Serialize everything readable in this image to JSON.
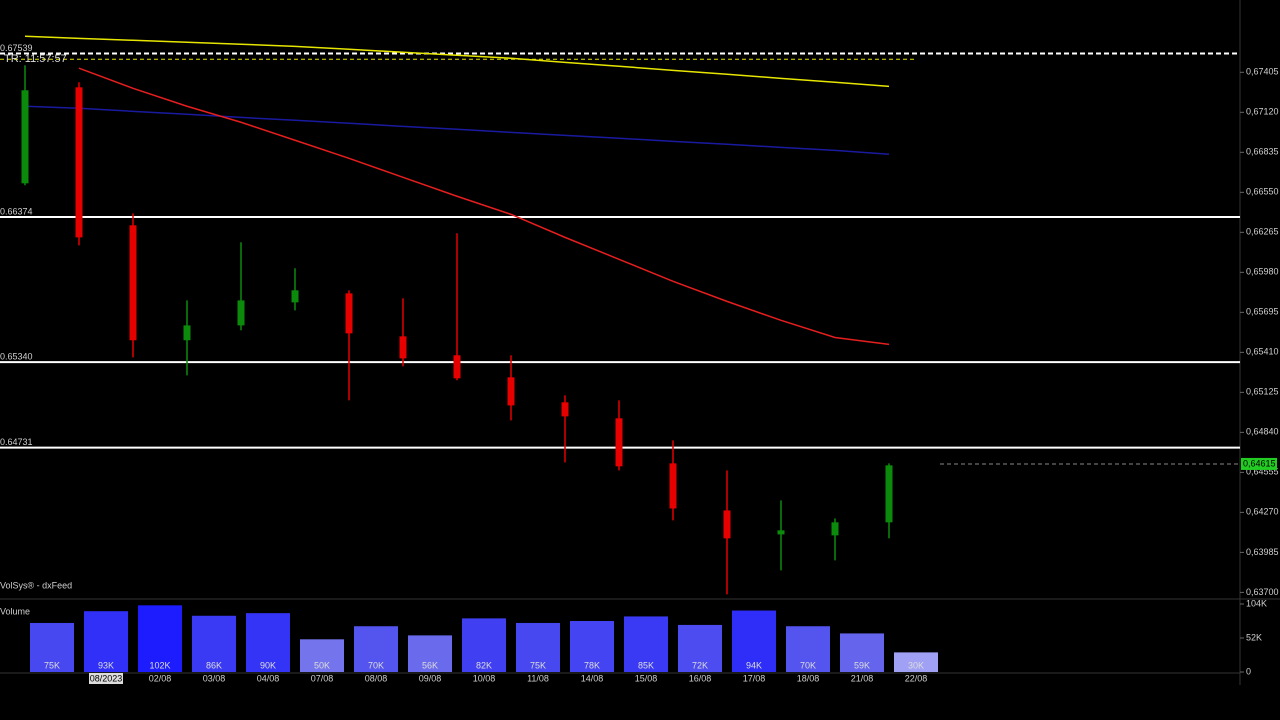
{
  "chart_data": [
    {
      "type": "candlestick",
      "watermark": "VolSys® - dxFeed",
      "ylim": [
        0.6366,
        0.6792
      ],
      "yticks": [
        {
          "value": 0.67405,
          "label": "0,67405"
        },
        {
          "value": 0.6712,
          "label": "0,67120"
        },
        {
          "value": 0.66835,
          "label": "0,66835"
        },
        {
          "value": 0.6655,
          "label": "0,66550"
        },
        {
          "value": 0.66265,
          "label": "0,66265"
        },
        {
          "value": 0.6598,
          "label": "0,65980"
        },
        {
          "value": 0.65695,
          "label": "0,65695"
        },
        {
          "value": 0.6541,
          "label": "0,65410"
        },
        {
          "value": 0.65125,
          "label": "0,65125"
        },
        {
          "value": 0.6484,
          "label": "0,64840"
        },
        {
          "value": 0.64555,
          "label": "0,64555"
        },
        {
          "value": 0.6427,
          "label": "0,64270"
        },
        {
          "value": 0.63985,
          "label": "0,63985"
        },
        {
          "value": 0.637,
          "label": "0,63700"
        }
      ],
      "open": [
        0.66614,
        0.67298,
        0.66315,
        0.65496,
        0.65602,
        0.65766,
        0.6583,
        0.65524,
        0.65389,
        0.65232,
        0.65054,
        0.6494,
        0.64619,
        0.64284,
        0.64113,
        0.64106,
        0.64199
      ],
      "high": [
        0.67455,
        0.67334,
        0.664,
        0.6578,
        0.66194,
        0.66009,
        0.65852,
        0.65795,
        0.66258,
        0.65389,
        0.65104,
        0.65068,
        0.64783,
        0.64569,
        0.64355,
        0.64227,
        0.64619
      ],
      "low": [
        0.666,
        0.66172,
        0.65374,
        0.65246,
        0.65567,
        0.65709,
        0.65068,
        0.6531,
        0.65211,
        0.64925,
        0.64626,
        0.64569,
        0.64213,
        0.63686,
        0.63857,
        0.63928,
        0.64085
      ],
      "close": [
        0.67277,
        0.66229,
        0.65496,
        0.65602,
        0.6578,
        0.65852,
        0.65545,
        0.65367,
        0.65225,
        0.65032,
        0.64954,
        0.64598,
        0.64298,
        0.64085,
        0.64142,
        0.64199,
        0.64605
      ],
      "up_color": "#0c8a0c",
      "down_color": "#e60000",
      "series": [
        {
          "color": "#e6e600",
          "values": [
            0.67662,
            0.67647,
            0.67633,
            0.67619,
            0.67605,
            0.6759,
            0.67569,
            0.67548,
            0.67526,
            0.67505,
            0.67476,
            0.67448,
            0.67419,
            0.67391,
            0.67362,
            0.67334,
            0.67305
          ]
        },
        {
          "color": "#1a1aa0",
          "values": [
            0.67163,
            0.67149,
            0.67127,
            0.67106,
            0.67084,
            0.67063,
            0.67042,
            0.6702,
            0.66999,
            0.66977,
            0.66956,
            0.66935,
            0.66913,
            0.66892,
            0.6687,
            0.66849,
            0.66821
          ]
        },
        {
          "color": "#e61e1e",
          "values": [
            null,
            0.67434,
            0.67291,
            0.67163,
            0.67049,
            0.66921,
            0.66792,
            0.66657,
            0.66522,
            0.66393,
            0.66229,
            0.66073,
            0.65916,
            0.65773,
            0.65638,
            0.65516,
            0.65467
          ]
        }
      ],
      "levels": [
        {
          "value": 0.67539,
          "label": "0.67539",
          "color": "#ffffff",
          "dashed": true
        },
        {
          "value": 0.66374,
          "label": "0.66374",
          "color": "#ffffff",
          "dashed": false
        },
        {
          "value": 0.6534,
          "label": "0.65340",
          "color": "#ffffff",
          "dashed": false
        },
        {
          "value": 0.64731,
          "label": "0.64731",
          "color": "#ffffff",
          "dashed": false
        }
      ],
      "timer": {
        "value": 0.67498,
        "label": "TR: 11:57:57",
        "color": "#e6e600"
      },
      "last_price": {
        "value": 0.64615,
        "label": "0,64615",
        "color": "#22cc22"
      }
    },
    {
      "type": "bar",
      "title": "Volume",
      "categories": [
        null,
        "08/2023",
        "02/08",
        "03/08",
        "04/08",
        "07/08",
        "08/08",
        "09/08",
        "10/08",
        "11/08",
        "14/08",
        "15/08",
        "16/08",
        "17/08",
        "18/08",
        "21/08",
        "22/08"
      ],
      "values": [
        75000,
        93000,
        102000,
        86000,
        90000,
        50000,
        70000,
        56000,
        82000,
        75000,
        78000,
        85000,
        72000,
        94000,
        70000,
        59000,
        30000
      ],
      "value_labels": [
        "75K",
        "93K",
        "102K",
        "86K",
        "90K",
        "50K",
        "70K",
        "56K",
        "82K",
        "75K",
        "78K",
        "85K",
        "72K",
        "94K",
        "70K",
        "59K",
        "30K"
      ],
      "colors": [
        "#4848f0",
        "#3030f8",
        "#1c1cff",
        "#3a3af4",
        "#3434f6",
        "#7474ec",
        "#5454ee",
        "#6a6aec",
        "#4040f2",
        "#4848f0",
        "#4444f2",
        "#3a3af4",
        "#4c4cf0",
        "#2e2ef8",
        "#5454ee",
        "#6464ec",
        "#a0a0f4"
      ],
      "ylim": [
        0,
        104000
      ],
      "yticks": [
        {
          "value": 104000,
          "label": "104K"
        },
        {
          "value": 52000,
          "label": "52K"
        },
        0
      ]
    }
  ]
}
